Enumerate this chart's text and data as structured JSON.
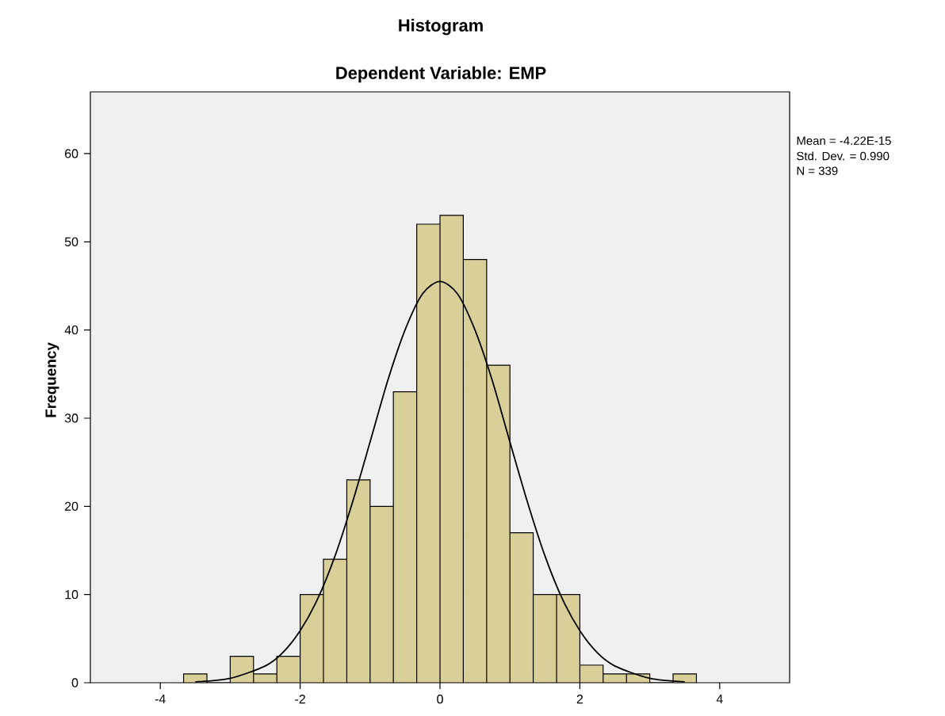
{
  "chart_data": {
    "type": "histogram",
    "title": "Histogram",
    "subtitle": "Dependent Variable: EMP",
    "ylabel": "Frequency",
    "annotations": [
      "Mean = -4.22E-15",
      "Std. Dev. = 0.990",
      "N = 339"
    ],
    "bins": [
      -3.667,
      -3.333,
      -3,
      -2.667,
      -2.333,
      -2,
      -1.667,
      -1.333,
      -1,
      -0.667,
      -0.333,
      0,
      0.333,
      0.667,
      1,
      1.333,
      1.667,
      2,
      2.333,
      2.667,
      3,
      3.333,
      3.667
    ],
    "values": [
      1,
      0,
      3,
      1,
      3,
      10,
      14,
      23,
      20,
      33,
      52,
      53,
      48,
      36,
      17,
      10,
      10,
      2,
      1,
      1,
      0,
      1
    ],
    "color": "#d9cf98",
    "series": [
      {
        "type": "line",
        "color": "#000000",
        "x": [
          -3.5,
          -3,
          -2.5,
          -2.25,
          -2,
          -1.75,
          -1.5,
          -1.25,
          -1,
          -0.75,
          -0.5,
          -0.25,
          0,
          0.25,
          0.5,
          0.75,
          1,
          1.25,
          1.5,
          1.75,
          2,
          2.25,
          2.5,
          3,
          3.5
        ],
        "values": [
          0.1,
          0.5,
          1.9,
          3.4,
          5.9,
          9.5,
          14.4,
          20.5,
          27.3,
          34.2,
          40,
          44.1,
          45.5,
          44.1,
          40,
          34.2,
          27.3,
          20.5,
          14.4,
          9.5,
          5.9,
          3.4,
          1.9,
          0.5,
          0.1
        ]
      }
    ],
    "xlim": [
      -5,
      5
    ],
    "ylim": [
      0,
      67
    ],
    "xticks": [
      -4,
      -2,
      0,
      2,
      4
    ],
    "yticks": [
      0,
      10,
      20,
      30,
      40,
      50,
      60
    ],
    "grid": false
  }
}
